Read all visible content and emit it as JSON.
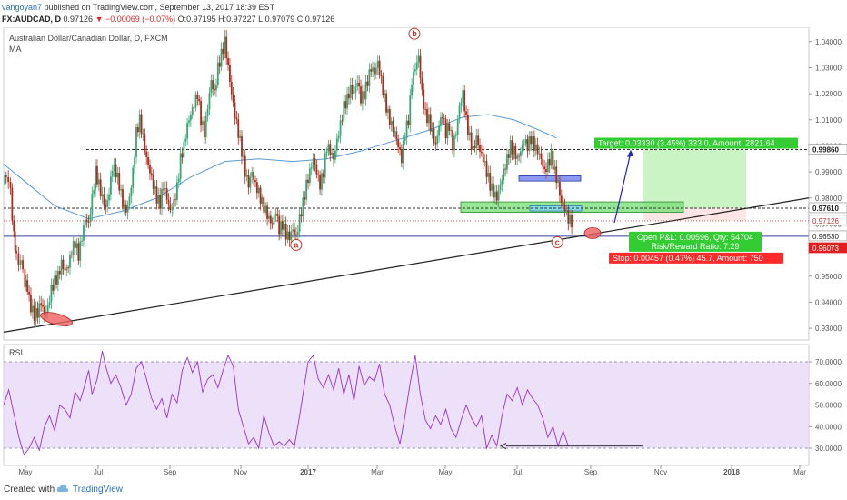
{
  "header": {
    "author": "vangoyan7",
    "published": "published on TradingView.com, September 13, 2017 18:39 EST",
    "symbol": "FX:AUDCAD, D",
    "last": "0.97126",
    "change": "−0.00069 (−0.07%)",
    "ohlc": "O:0.97195 H:0.97227 L:0.97079 C:0.97126"
  },
  "footer": {
    "created": "Created with",
    "brand": "TradingView"
  },
  "chart_data": [
    {
      "type": "candlestick",
      "title": "Australian Dollar/Canadian Dollar, D, FXCM",
      "indicator": "MA",
      "xlabel": "",
      "ylabel": "",
      "x_ticks": [
        "May",
        "Jul",
        "Sep",
        "Nov",
        "2017",
        "Mar",
        "May",
        "Jul",
        "Sep",
        "Nov",
        "2018",
        "Mar"
      ],
      "y_ticks": [
        "0.93000",
        "0.94000",
        "0.95000",
        "0.96000",
        "0.97000",
        "0.98000",
        "0.99000",
        "1.00000",
        "1.01000",
        "1.02000",
        "1.03000",
        "1.04000"
      ],
      "ylim": [
        0.9255,
        1.0455
      ],
      "grid": false,
      "price_path": [
        [
          0,
          0.985
        ],
        [
          3,
          0.99
        ],
        [
          8,
          0.982
        ],
        [
          12,
          0.965
        ],
        [
          15,
          0.958
        ],
        [
          20,
          0.955
        ],
        [
          25,
          0.948
        ],
        [
          28,
          0.945
        ],
        [
          32,
          0.938
        ],
        [
          36,
          0.935
        ],
        [
          40,
          0.936
        ],
        [
          44,
          0.94
        ],
        [
          48,
          0.935
        ],
        [
          52,
          0.938
        ],
        [
          56,
          0.945
        ],
        [
          60,
          0.948
        ],
        [
          64,
          0.95
        ],
        [
          68,
          0.955
        ],
        [
          72,
          0.952
        ],
        [
          76,
          0.954
        ],
        [
          80,
          0.96
        ],
        [
          84,
          0.963
        ],
        [
          88,
          0.958
        ],
        [
          92,
          0.965
        ],
        [
          96,
          0.972
        ],
        [
          100,
          0.97
        ],
        [
          104,
          0.98
        ],
        [
          108,
          0.99
        ],
        [
          112,
          0.985
        ],
        [
          116,
          0.98
        ],
        [
          120,
          0.976
        ],
        [
          124,
          0.982
        ],
        [
          128,
          0.992
        ],
        [
          132,
          0.99
        ],
        [
          136,
          0.985
        ],
        [
          140,
          0.978
        ],
        [
          144,
          0.975
        ],
        [
          148,
          0.98
        ],
        [
          152,
          0.99
        ],
        [
          156,
          1.005
        ],
        [
          160,
          1.01
        ],
        [
          164,
          1.003
        ],
        [
          168,
          0.995
        ],
        [
          172,
          0.99
        ],
        [
          176,
          0.985
        ],
        [
          180,
          0.98
        ],
        [
          184,
          0.978
        ],
        [
          188,
          0.985
        ],
        [
          192,
          0.98
        ],
        [
          196,
          0.975
        ],
        [
          200,
          0.978
        ],
        [
          204,
          0.984
        ],
        [
          208,
          0.995
        ],
        [
          212,
          1.0
        ],
        [
          216,
          1.008
        ],
        [
          220,
          1.012
        ],
        [
          224,
          1.016
        ],
        [
          228,
          1.02
        ],
        [
          232,
          1.01
        ],
        [
          236,
          1.005
        ],
        [
          240,
          1.015
        ],
        [
          244,
          1.025
        ],
        [
          248,
          1.02
        ],
        [
          252,
          1.03
        ],
        [
          256,
          1.035
        ],
        [
          260,
          1.04
        ],
        [
          264,
          1.03
        ],
        [
          268,
          1.02
        ],
        [
          272,
          1.012
        ],
        [
          276,
          1.005
        ],
        [
          280,
          0.998
        ],
        [
          284,
          0.99
        ],
        [
          288,
          0.985
        ],
        [
          292,
          0.99
        ],
        [
          296,
          0.985
        ],
        [
          300,
          0.982
        ],
        [
          304,
          0.978
        ],
        [
          308,
          0.975
        ],
        [
          312,
          0.972
        ],
        [
          316,
          0.97
        ],
        [
          320,
          0.975
        ],
        [
          324,
          0.968
        ],
        [
          328,
          0.97
        ],
        [
          332,
          0.966
        ],
        [
          336,
          0.965
        ],
        [
          340,
          0.968
        ],
        [
          344,
          0.965
        ],
        [
          348,
          0.972
        ],
        [
          352,
          0.978
        ],
        [
          356,
          0.985
        ],
        [
          360,
          0.99
        ],
        [
          364,
          0.995
        ],
        [
          368,
          0.99
        ],
        [
          372,
          0.985
        ],
        [
          376,
          0.99
        ],
        [
          380,
          1.0
        ],
        [
          384,
          0.998
        ],
        [
          388,
          0.995
        ],
        [
          392,
          1.002
        ],
        [
          396,
          1.008
        ],
        [
          400,
          1.015
        ],
        [
          404,
          1.018
        ],
        [
          408,
          1.022
        ],
        [
          412,
          1.02
        ],
        [
          416,
          1.025
        ],
        [
          420,
          1.018
        ],
        [
          424,
          1.02
        ],
        [
          428,
          1.025
        ],
        [
          432,
          1.03
        ],
        [
          436,
          1.028
        ],
        [
          440,
          1.032
        ],
        [
          444,
          1.025
        ],
        [
          448,
          1.018
        ],
        [
          452,
          1.012
        ],
        [
          456,
          1.008
        ],
        [
          460,
          1.005
        ],
        [
          464,
          1.0
        ],
        [
          468,
          0.995
        ],
        [
          472,
          1.005
        ],
        [
          476,
          1.01
        ],
        [
          480,
          1.025
        ],
        [
          484,
          1.03
        ],
        [
          488,
          1.034
        ],
        [
          492,
          1.02
        ],
        [
          496,
          1.012
        ],
        [
          500,
          1.01
        ],
        [
          504,
          1.005
        ],
        [
          508,
          1.0
        ],
        [
          512,
          1.008
        ],
        [
          516,
          1.012
        ],
        [
          520,
          1.005
        ],
        [
          524,
          1.008
        ],
        [
          528,
          1.0
        ],
        [
          532,
          1.005
        ],
        [
          536,
          1.015
        ],
        [
          540,
          1.02
        ],
        [
          544,
          1.01
        ],
        [
          548,
          1.003
        ],
        [
          552,
          0.998
        ],
        [
          556,
          1.003
        ],
        [
          560,
          0.998
        ],
        [
          564,
          0.995
        ],
        [
          568,
          0.99
        ],
        [
          572,
          0.985
        ],
        [
          576,
          0.982
        ],
        [
          580,
          0.98
        ],
        [
          584,
          0.985
        ],
        [
          588,
          0.99
        ],
        [
          592,
          0.995
        ],
        [
          596,
          1.0
        ],
        [
          600,
          0.998
        ],
        [
          604,
          0.995
        ],
        [
          608,
          0.998
        ],
        [
          612,
          1.002
        ],
        [
          616,
          1.0
        ],
        [
          620,
          1.003
        ],
        [
          624,
          1.0
        ],
        [
          628,
          0.998
        ],
        [
          632,
          0.995
        ],
        [
          636,
          0.99
        ],
        [
          640,
          0.993
        ],
        [
          644,
          0.996
        ],
        [
          648,
          0.99
        ],
        [
          652,
          0.985
        ],
        [
          656,
          0.978
        ],
        [
          660,
          0.976
        ],
        [
          664,
          0.972
        ],
        [
          668,
          0.971
        ]
      ],
      "moving_average": [
        [
          0,
          0.993
        ],
        [
          30,
          0.985
        ],
        [
          60,
          0.977
        ],
        [
          100,
          0.972
        ],
        [
          140,
          0.975
        ],
        [
          180,
          0.98
        ],
        [
          220,
          0.988
        ],
        [
          260,
          0.994
        ],
        [
          300,
          0.995
        ],
        [
          340,
          0.994
        ],
        [
          380,
          0.995
        ],
        [
          420,
          0.998
        ],
        [
          460,
          1.002
        ],
        [
          500,
          1.006
        ],
        [
          540,
          1.011
        ],
        [
          570,
          1.012
        ],
        [
          600,
          1.01
        ],
        [
          630,
          1.006
        ],
        [
          650,
          1.003
        ]
      ],
      "levels": [
        {
          "value": 0.9986,
          "label": "0.99860",
          "style": "dashed"
        },
        {
          "value": 0.9761,
          "label": "0.97610",
          "style": "dashed"
        },
        {
          "value": 0.97126,
          "label": "0.97126",
          "style": "dotted"
        },
        {
          "value": 0.9653,
          "label": "0.96530",
          "style": "solid"
        },
        {
          "value": 0.96073,
          "label": "0.96073",
          "style": "box"
        }
      ],
      "annotations": [
        {
          "text": "b",
          "x": 483,
          "y": 1.043
        },
        {
          "text": "a",
          "x": 344,
          "y": 0.962
        },
        {
          "text": "c",
          "x": 651,
          "y": 0.963
        }
      ],
      "position": {
        "target": "Target: 0.03330 (3.45%) 333.0, Amount: 2821.64",
        "open": "Open P&L: 0.00596, Qty: 54704",
        "risk_reward": "Risk/Reward Ratio: 7.29",
        "stop": "Stop: 0.00457 (0.47%) 45.7, Amount: 750"
      },
      "colors": {
        "up": "#35a776",
        "down": "#b0291a",
        "ma": "#5b9bd5",
        "target": "#33cc33",
        "stop": "#ff2a2a",
        "level": "#3040a0"
      }
    },
    {
      "type": "line",
      "title": "RSI",
      "xlabel": "",
      "ylabel": "",
      "y_ticks": [
        "30.0000",
        "40.0000",
        "50.0000",
        "60.0000",
        "70.0000"
      ],
      "ylim": [
        22,
        78
      ],
      "band": [
        30,
        70
      ],
      "grid": false,
      "values": [
        [
          0,
          50
        ],
        [
          6,
          57
        ],
        [
          12,
          46
        ],
        [
          18,
          35
        ],
        [
          24,
          27
        ],
        [
          30,
          30
        ],
        [
          36,
          35
        ],
        [
          42,
          29
        ],
        [
          48,
          40
        ],
        [
          54,
          45
        ],
        [
          60,
          38
        ],
        [
          66,
          50
        ],
        [
          72,
          48
        ],
        [
          78,
          44
        ],
        [
          84,
          56
        ],
        [
          90,
          52
        ],
        [
          96,
          60
        ],
        [
          100,
          66
        ],
        [
          104,
          55
        ],
        [
          110,
          62
        ],
        [
          116,
          75
        ],
        [
          120,
          68
        ],
        [
          126,
          60
        ],
        [
          132,
          64
        ],
        [
          138,
          58
        ],
        [
          144,
          50
        ],
        [
          150,
          55
        ],
        [
          156,
          67
        ],
        [
          162,
          70
        ],
        [
          168,
          62
        ],
        [
          174,
          53
        ],
        [
          180,
          48
        ],
        [
          186,
          53
        ],
        [
          192,
          44
        ],
        [
          198,
          55
        ],
        [
          204,
          51
        ],
        [
          210,
          66
        ],
        [
          216,
          72
        ],
        [
          222,
          65
        ],
        [
          228,
          70
        ],
        [
          234,
          56
        ],
        [
          240,
          62
        ],
        [
          246,
          64
        ],
        [
          252,
          58
        ],
        [
          258,
          66
        ],
        [
          264,
          73
        ],
        [
          270,
          68
        ],
        [
          276,
          48
        ],
        [
          282,
          40
        ],
        [
          288,
          32
        ],
        [
          294,
          35
        ],
        [
          300,
          30
        ],
        [
          306,
          45
        ],
        [
          312,
          37
        ],
        [
          318,
          31
        ],
        [
          324,
          33
        ],
        [
          330,
          31
        ],
        [
          336,
          34
        ],
        [
          342,
          31
        ],
        [
          348,
          45
        ],
        [
          354,
          60
        ],
        [
          358,
          70
        ],
        [
          364,
          73
        ],
        [
          370,
          62
        ],
        [
          376,
          58
        ],
        [
          382,
          64
        ],
        [
          388,
          57
        ],
        [
          394,
          67
        ],
        [
          400,
          55
        ],
        [
          406,
          64
        ],
        [
          412,
          52
        ],
        [
          418,
          68
        ],
        [
          424,
          59
        ],
        [
          430,
          63
        ],
        [
          436,
          61
        ],
        [
          442,
          69
        ],
        [
          448,
          55
        ],
        [
          454,
          50
        ],
        [
          460,
          40
        ],
        [
          466,
          32
        ],
        [
          472,
          45
        ],
        [
          478,
          60
        ],
        [
          484,
          73
        ],
        [
          490,
          55
        ],
        [
          496,
          43
        ],
        [
          502,
          39
        ],
        [
          508,
          45
        ],
        [
          514,
          41
        ],
        [
          520,
          48
        ],
        [
          526,
          39
        ],
        [
          532,
          35
        ],
        [
          538,
          43
        ],
        [
          544,
          50
        ],
        [
          550,
          44
        ],
        [
          556,
          40
        ],
        [
          562,
          45
        ],
        [
          568,
          30
        ],
        [
          574,
          36
        ],
        [
          580,
          31
        ],
        [
          586,
          45
        ],
        [
          592,
          55
        ],
        [
          598,
          52
        ],
        [
          604,
          58
        ],
        [
          610,
          50
        ],
        [
          616,
          57
        ],
        [
          622,
          53
        ],
        [
          628,
          50
        ],
        [
          634,
          44
        ],
        [
          640,
          35
        ],
        [
          646,
          40
        ],
        [
          652,
          31
        ],
        [
          658,
          38
        ],
        [
          664,
          31
        ]
      ],
      "divergence_arrow": {
        "from": [
          707,
          31
        ],
        "to": [
          551,
          31
        ]
      }
    }
  ],
  "x_axis_ticks_pos": [
    28,
    108,
    187,
    265,
    339,
    415,
    490,
    569,
    650,
    727,
    805,
    880
  ]
}
